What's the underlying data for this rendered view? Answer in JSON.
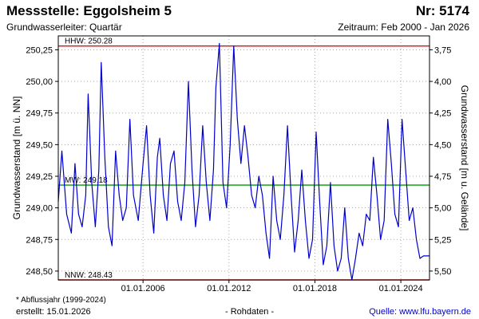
{
  "header": {
    "title": "Messstelle: Eggolsheim 5",
    "nr": "Nr: 5174",
    "aquifer": "Grundwasserleiter: Quartär",
    "period": "Zeitraum: Feb 2000 - Jan 2026"
  },
  "footer": {
    "note": "* Abflussjahr (1999-2024)",
    "created": "erstellt:  15.01.2026",
    "raw": "- Rohdaten -",
    "source": "Quelle: www.lfu.bayern.de"
  },
  "colors": {
    "series": "#0000cc",
    "hhw": "#ff0000",
    "nnw": "#ff0000",
    "mw": "#009900",
    "grid": "#999999"
  },
  "chart_data": {
    "type": "line",
    "ylabel": "Grundwasserstand [m ü. NN]",
    "y2label": "Grundwasserstand [m u. Gelände]",
    "ylim": [
      248.43,
      250.36
    ],
    "xlim": [
      "2000-02",
      "2026-01"
    ],
    "y_ticks": [
      "250,25",
      "250,00",
      "249,75",
      "249,50",
      "249,25",
      "249,00",
      "248,75",
      "248,50"
    ],
    "y_tick_values": [
      250.25,
      250.0,
      249.75,
      249.5,
      249.25,
      249.0,
      248.75,
      248.5
    ],
    "y2_ticks": [
      "3,75",
      "4,00",
      "4,25",
      "4,50",
      "4,75",
      "5,00",
      "5,25",
      "5,50"
    ],
    "x_ticks": [
      "01.01.2006",
      "01.01.2012",
      "01.01.2018",
      "01.01.2024"
    ],
    "x_tick_values": [
      "2006-01-01",
      "2012-01-01",
      "2018-01-01",
      "2024-01-01"
    ],
    "ref_lines": [
      {
        "label": "HHW: 250.28",
        "value": 250.28,
        "key": "hhw"
      },
      {
        "label": "MW: 249.18",
        "value": 249.18,
        "key": "mw"
      },
      {
        "label": "NNW: 248.43",
        "value": 248.43,
        "key": "nnw"
      }
    ],
    "grid": true,
    "series": [
      {
        "x": [
          "2000-02",
          "2000-05",
          "2000-09",
          "2001-01",
          "2001-04",
          "2001-07",
          "2001-10",
          "2002-01",
          "2002-03",
          "2002-06",
          "2002-09",
          "2002-12",
          "2003-02",
          "2003-05",
          "2003-08",
          "2003-11",
          "2004-02",
          "2004-05",
          "2004-08",
          "2004-11",
          "2005-02",
          "2005-05",
          "2005-09",
          "2006-01",
          "2006-04",
          "2006-07",
          "2006-10",
          "2007-01",
          "2007-03",
          "2007-06",
          "2007-09",
          "2007-12",
          "2008-03",
          "2008-06",
          "2008-09",
          "2008-12",
          "2009-03",
          "2009-06",
          "2009-09",
          "2009-12",
          "2010-03",
          "2010-06",
          "2010-09",
          "2010-12",
          "2011-02",
          "2011-05",
          "2011-08",
          "2011-11",
          "2012-02",
          "2012-05",
          "2012-08",
          "2012-11",
          "2013-02",
          "2013-05",
          "2013-08",
          "2013-11",
          "2014-02",
          "2014-05",
          "2014-08",
          "2014-11",
          "2015-02",
          "2015-05",
          "2015-08",
          "2015-11",
          "2016-02",
          "2016-05",
          "2016-08",
          "2016-11",
          "2017-02",
          "2017-05",
          "2017-08",
          "2017-11",
          "2018-02",
          "2018-05",
          "2018-08",
          "2018-11",
          "2019-02",
          "2019-05",
          "2019-08",
          "2019-11",
          "2020-02",
          "2020-05",
          "2020-08",
          "2020-11",
          "2021-02",
          "2021-05",
          "2021-08",
          "2021-11",
          "2022-02",
          "2022-05",
          "2022-08",
          "2022-11",
          "2023-02",
          "2023-05",
          "2023-08",
          "2023-11",
          "2024-02",
          "2024-05",
          "2024-08",
          "2024-11",
          "2025-02",
          "2025-05",
          "2025-08",
          "2026-01"
        ],
        "y": [
          249.05,
          249.45,
          248.95,
          248.8,
          249.35,
          248.95,
          248.85,
          249.1,
          249.9,
          249.2,
          248.85,
          249.3,
          250.15,
          249.4,
          248.85,
          248.7,
          249.45,
          249.1,
          248.9,
          249.0,
          249.7,
          249.1,
          248.9,
          249.35,
          249.65,
          249.1,
          248.8,
          249.4,
          249.55,
          249.1,
          248.9,
          249.35,
          249.45,
          249.05,
          248.9,
          249.2,
          250.0,
          249.3,
          248.85,
          249.1,
          249.65,
          249.2,
          248.9,
          249.3,
          249.95,
          250.3,
          249.2,
          249.0,
          249.5,
          250.28,
          249.7,
          249.35,
          249.65,
          249.4,
          249.1,
          249.0,
          249.25,
          249.1,
          248.8,
          248.6,
          249.25,
          248.9,
          248.75,
          249.1,
          249.65,
          249.1,
          248.65,
          248.9,
          249.3,
          248.9,
          248.6,
          248.75,
          249.6,
          249.05,
          248.55,
          248.7,
          249.2,
          248.7,
          248.5,
          248.6,
          249.0,
          248.6,
          248.43,
          248.6,
          248.8,
          248.7,
          248.95,
          248.9,
          249.4,
          249.1,
          248.75,
          248.9,
          249.7,
          249.35,
          248.95,
          248.85,
          249.7,
          249.3,
          248.9,
          249.0,
          248.75,
          248.6,
          248.62,
          248.62
        ]
      }
    ]
  }
}
